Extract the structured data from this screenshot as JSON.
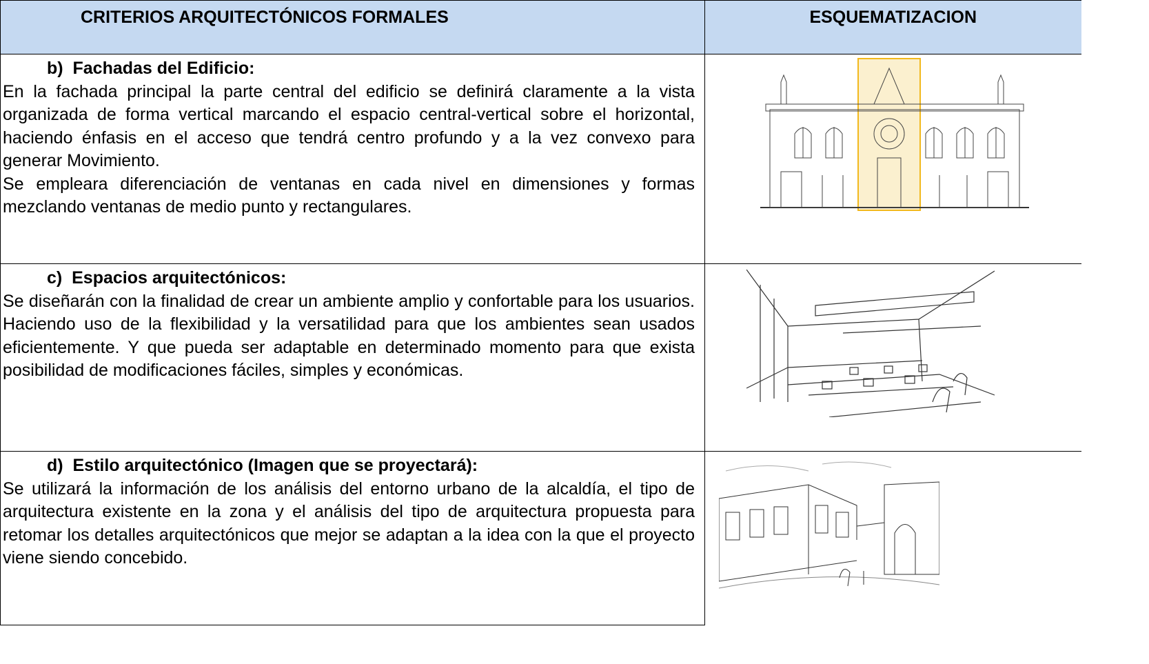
{
  "table": {
    "headers": [
      "CRITERIOS ARQUITECTÓNICOS FORMALES",
      "ESQUEMATIZACION"
    ],
    "rows": [
      {
        "heading": "b)  Fachadas del Edificio:",
        "paragraphs": [
          "En la fachada principal la parte central del edificio  se definirá claramente a la vista organizada de forma vertical marcando el espacio central-vertical sobre el horizontal, haciendo  énfasis en el acceso  que tendrá centro profundo y a la vez convexo para generar Movimiento.",
          "Se empleara diferenciación de ventanas  en cada nivel en dimensiones y formas mezclando  ventanas de medio punto y rectangulares."
        ]
      },
      {
        "heading": "c)  Espacios arquitectónicos:",
        "paragraphs": [
          "Se diseñarán con la finalidad de crear un ambiente amplio y confortable para los usuarios. Haciendo uso de la flexibilidad y la versatilidad para que los ambientes sean usados eficientemente. Y que pueda ser adaptable en determinado momento  para que exista  posibilidad de modificaciones fáciles, simples y económicas."
        ]
      },
      {
        "heading": "d)  Estilo arquitectónico (Imagen que se proyectará):",
        "paragraphs": [
          "Se utilizará la información de los  análisis del entorno urbano  de la alcaldía, el tipo de arquitectura existente en la zona y el análisis del tipo de arquitectura  propuesta para retomar los detalles arquitectónicos que mejor se adaptan a la idea con la que el proyecto viene siendo concebido."
        ]
      }
    ]
  }
}
